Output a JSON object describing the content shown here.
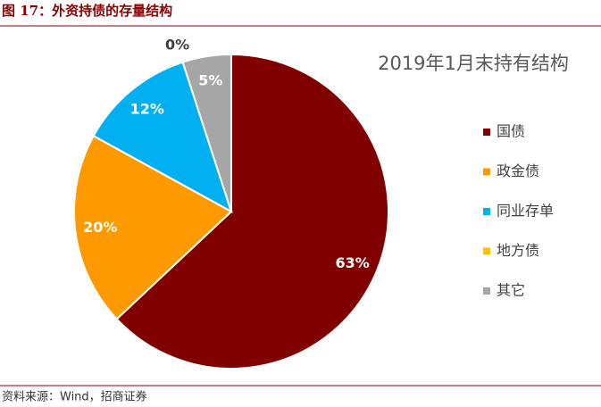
{
  "header": {
    "title": "图 17：外资持债的存量结构"
  },
  "chart_data": {
    "type": "pie",
    "title": "2019年1月末持有结构",
    "categories": [
      "国债",
      "政金债",
      "同业存单",
      "地方债",
      "其它"
    ],
    "values": [
      63,
      20,
      12,
      0,
      5
    ],
    "value_labels": [
      "63%",
      "20%",
      "12%",
      "0%",
      "5%"
    ],
    "colors": [
      "#800000",
      "#FF9900",
      "#00B0F0",
      "#FFC000",
      "#A6A6A6"
    ]
  },
  "footer": {
    "source": "资料来源：Wind，招商证券"
  }
}
